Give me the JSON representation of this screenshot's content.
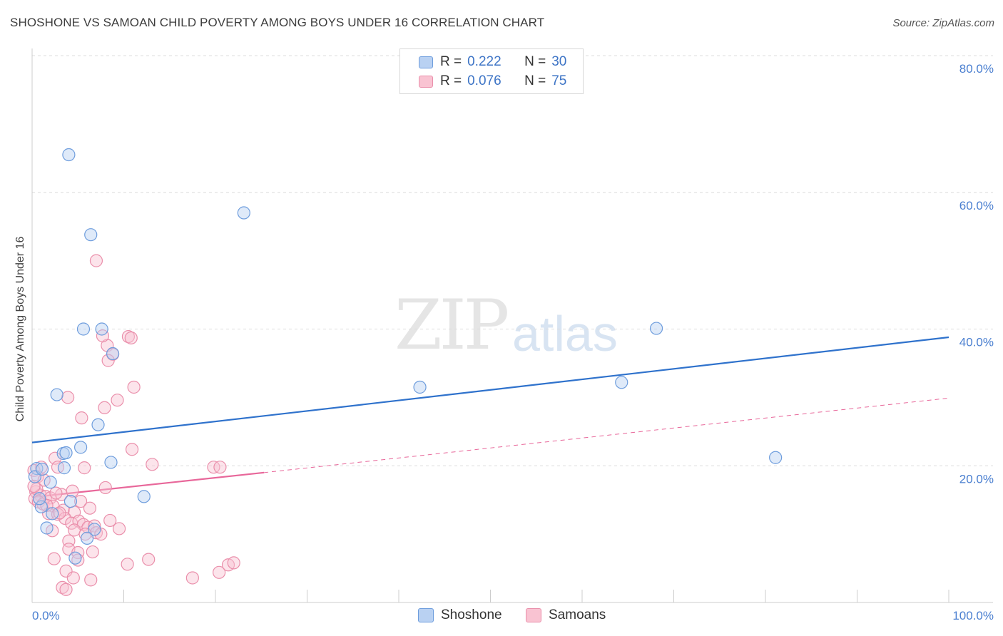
{
  "title": "SHOSHONE VS SAMOAN CHILD POVERTY AMONG BOYS UNDER 16 CORRELATION CHART",
  "source": "Source: ZipAtlas.com",
  "watermark": {
    "zip": "ZIP",
    "atlas": "atlas"
  },
  "legend": {
    "rows": [
      {
        "r_label": "R =",
        "r_value": "0.222",
        "n_label": "N =",
        "n_value": "30"
      },
      {
        "r_label": "R =",
        "r_value": "0.076",
        "n_label": "N =",
        "n_value": "75"
      }
    ]
  },
  "bottom_legend": [
    "Shoshone",
    "Samoans"
  ],
  "chart_data": {
    "type": "scatter",
    "title": "SHOSHONE VS SAMOAN CHILD POVERTY AMONG BOYS UNDER 16 CORRELATION CHART",
    "xlabel": "",
    "ylabel": "Child Poverty Among Boys Under 16",
    "xlim": [
      0,
      100
    ],
    "ylim": [
      0,
      80
    ],
    "x_tick_labels": [
      "0.0%",
      "100.0%"
    ],
    "y_ticks": [
      20,
      40,
      60,
      80
    ],
    "y_tick_labels": [
      "20.0%",
      "40.0%",
      "60.0%",
      "80.0%"
    ],
    "colors": {
      "shoshone_fill": "#b9d1f2",
      "shoshone_stroke": "#6e9ddd",
      "shoshone_line": "#2f72cc",
      "samoans_fill": "#f9c3d2",
      "samoans_stroke": "#ea8fab",
      "samoans_line": "#e8679a"
    },
    "series": [
      {
        "name": "Shoshone",
        "points": [
          [
            4.0,
            65.5
          ],
          [
            6.4,
            53.8
          ],
          [
            23.1,
            57.0
          ],
          [
            5.6,
            40.0
          ],
          [
            7.6,
            40.0
          ],
          [
            8.8,
            36.4
          ],
          [
            2.7,
            30.4
          ],
          [
            42.3,
            31.5
          ],
          [
            64.3,
            32.2
          ],
          [
            68.1,
            40.1
          ],
          [
            7.2,
            26.0
          ],
          [
            5.3,
            22.7
          ],
          [
            3.4,
            21.8
          ],
          [
            3.7,
            21.9
          ],
          [
            8.6,
            20.5
          ],
          [
            3.5,
            19.7
          ],
          [
            0.5,
            19.6
          ],
          [
            0.3,
            18.4
          ],
          [
            81.1,
            21.2
          ],
          [
            12.2,
            15.5
          ],
          [
            2.0,
            17.6
          ],
          [
            4.2,
            14.8
          ],
          [
            1.0,
            14.0
          ],
          [
            2.2,
            13.0
          ],
          [
            1.6,
            10.9
          ],
          [
            6.8,
            10.7
          ],
          [
            6.0,
            9.4
          ],
          [
            4.7,
            6.5
          ],
          [
            1.1,
            19.5
          ],
          [
            0.8,
            15.2
          ]
        ]
      },
      {
        "name": "Samoans",
        "points": [
          [
            7.0,
            50.0
          ],
          [
            8.2,
            37.6
          ],
          [
            7.7,
            39.0
          ],
          [
            10.5,
            38.9
          ],
          [
            10.8,
            38.7
          ],
          [
            8.8,
            36.3
          ],
          [
            8.3,
            35.4
          ],
          [
            11.1,
            31.5
          ],
          [
            3.9,
            30.0
          ],
          [
            9.3,
            29.6
          ],
          [
            7.9,
            28.5
          ],
          [
            5.4,
            27.0
          ],
          [
            10.9,
            22.4
          ],
          [
            2.5,
            21.1
          ],
          [
            13.1,
            20.2
          ],
          [
            1.0,
            19.8
          ],
          [
            2.8,
            19.8
          ],
          [
            5.7,
            19.7
          ],
          [
            19.8,
            19.8
          ],
          [
            20.5,
            19.8
          ],
          [
            8.0,
            16.8
          ],
          [
            0.2,
            19.3
          ],
          [
            0.6,
            18.4
          ],
          [
            1.3,
            17.9
          ],
          [
            0.4,
            16.2
          ],
          [
            0.9,
            15.7
          ],
          [
            1.5,
            15.5
          ],
          [
            2.0,
            15.3
          ],
          [
            3.2,
            15.8
          ],
          [
            4.4,
            16.3
          ],
          [
            5.3,
            14.8
          ],
          [
            0.3,
            15.2
          ],
          [
            0.7,
            14.7
          ],
          [
            1.2,
            14.4
          ],
          [
            2.3,
            14.1
          ],
          [
            3.4,
            13.5
          ],
          [
            4.6,
            13.2
          ],
          [
            1.8,
            13.0
          ],
          [
            2.8,
            12.9
          ],
          [
            3.6,
            12.3
          ],
          [
            4.3,
            11.6
          ],
          [
            5.1,
            11.9
          ],
          [
            5.6,
            11.4
          ],
          [
            6.1,
            11.0
          ],
          [
            6.8,
            11.2
          ],
          [
            4.6,
            10.6
          ],
          [
            7.0,
            10.2
          ],
          [
            2.2,
            10.5
          ],
          [
            5.8,
            10.0
          ],
          [
            7.5,
            10.0
          ],
          [
            4.0,
            9.0
          ],
          [
            4.0,
            7.8
          ],
          [
            5.0,
            7.3
          ],
          [
            6.6,
            7.4
          ],
          [
            2.4,
            6.4
          ],
          [
            5.0,
            6.2
          ],
          [
            10.4,
            5.6
          ],
          [
            12.7,
            6.3
          ],
          [
            21.4,
            5.5
          ],
          [
            22.0,
            5.8
          ],
          [
            3.7,
            4.6
          ],
          [
            4.5,
            3.6
          ],
          [
            6.4,
            3.3
          ],
          [
            17.5,
            3.6
          ],
          [
            20.4,
            4.4
          ],
          [
            3.3,
            2.2
          ],
          [
            3.7,
            1.9
          ],
          [
            0.5,
            16.6
          ],
          [
            1.6,
            14.2
          ],
          [
            2.6,
            16.0
          ],
          [
            3.0,
            13.1
          ],
          [
            0.2,
            17.0
          ],
          [
            6.3,
            13.8
          ],
          [
            8.5,
            12.0
          ],
          [
            9.5,
            10.8
          ]
        ]
      }
    ],
    "trendlines": [
      {
        "series": "Shoshone",
        "x": [
          0,
          100
        ],
        "y": [
          23.4,
          38.8
        ],
        "style": "solid"
      },
      {
        "series": "Samoans",
        "x": [
          0,
          25.3
        ],
        "y": [
          15.4,
          19.0
        ],
        "style": "solid"
      },
      {
        "series": "Samoans",
        "x": [
          25.3,
          100
        ],
        "y": [
          19.0,
          29.9
        ],
        "style": "dashed"
      }
    ]
  }
}
